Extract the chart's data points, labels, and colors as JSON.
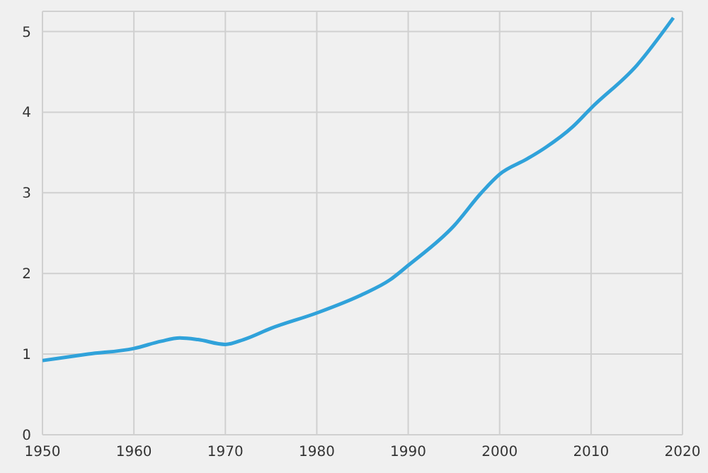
{
  "chart_data": {
    "type": "line",
    "x": [
      1950,
      1955,
      1960,
      1963,
      1965,
      1967,
      1970,
      1972,
      1975,
      1980,
      1985,
      1988,
      1990,
      1995,
      1998,
      2000,
      2003,
      2005,
      2008,
      2010,
      2015,
      2019
    ],
    "series": [
      {
        "color": "#30a2da",
        "values": [
          0.92,
          1.0,
          1.07,
          1.16,
          1.2,
          1.18,
          1.12,
          1.18,
          1.32,
          1.51,
          1.74,
          1.92,
          2.1,
          2.59,
          3.0,
          3.23,
          3.42,
          3.56,
          3.82,
          4.05,
          4.58,
          5.17
        ]
      }
    ],
    "xlim": [
      1950,
      2020
    ],
    "xticks": [
      1950,
      1960,
      1970,
      1980,
      1990,
      2000,
      2010,
      2020
    ],
    "ylim": [
      0,
      5.25
    ],
    "yticks": [
      0,
      1,
      2,
      3,
      4,
      5
    ],
    "grid": true,
    "legend": false,
    "marker": "none",
    "line_style": "solid"
  }
}
